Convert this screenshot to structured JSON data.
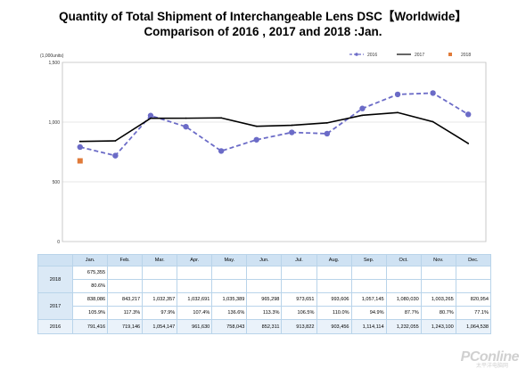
{
  "title": {
    "line1": "Quantity of Total Shipment of Interchangeable Lens DSC【Worldwide】",
    "line2": "Comparison of 2016 , 2017 and 2018 :Jan."
  },
  "chart_data": {
    "type": "line",
    "title": "Quantity of Total Shipment of Interchangeable Lens DSC【Worldwide】 Comparison of 2016 , 2017 and 2018 :Jan.",
    "unit_label": "(1,000units)",
    "categories": [
      "Jan.",
      "Feb.",
      "Mar.",
      "Apr.",
      "May.",
      "Jun.",
      "Jul.",
      "Aug.",
      "Sep.",
      "Oct.",
      "Nov.",
      "Dec."
    ],
    "ylim": [
      0,
      1500
    ],
    "yticks": [
      0,
      500,
      1000,
      1500
    ],
    "ytick_labels": [
      "0",
      "500",
      "1,000",
      "1,500"
    ],
    "grid": true,
    "legend_position": "top-right",
    "series": [
      {
        "name": "2016",
        "color": "#6b6bc7",
        "style": "dashed-circle",
        "values": [
          791.416,
          719.146,
          1054.147,
          961.63,
          758.043,
          852.311,
          913.822,
          903.456,
          1114.114,
          1232.055,
          1243.1,
          1064.538
        ]
      },
      {
        "name": "2017",
        "color": "#000000",
        "style": "solid",
        "values": [
          838.086,
          843.217,
          1032.357,
          1032.691,
          1035.389,
          965.298,
          973.651,
          993.606,
          1057.145,
          1080.03,
          1003.265,
          820.954
        ]
      },
      {
        "name": "2018",
        "color": "#e07b39",
        "style": "square",
        "values": [
          675.355,
          null,
          null,
          null,
          null,
          null,
          null,
          null,
          null,
          null,
          null,
          null
        ]
      }
    ]
  },
  "table": {
    "months": [
      "Jan.",
      "Feb.",
      "Mar.",
      "Apr.",
      "May.",
      "Jun.",
      "Jul.",
      "Aug.",
      "Sep.",
      "Oct.",
      "Nov.",
      "Dec."
    ],
    "rows": {
      "y2018": {
        "label": "2018",
        "values": [
          "675,355",
          "",
          "",
          "",
          "",
          "",
          "",
          "",
          "",
          "",
          "",
          ""
        ],
        "pct": [
          "80.6%",
          "",
          "",
          "",
          "",
          "",
          "",
          "",
          "",
          "",
          "",
          ""
        ]
      },
      "y2017": {
        "label": "2017",
        "values": [
          "838,086",
          "843,217",
          "1,032,357",
          "1,032,691",
          "1,035,389",
          "965,298",
          "973,651",
          "993,606",
          "1,057,145",
          "1,080,030",
          "1,003,265",
          "820,954"
        ],
        "pct": [
          "105.9%",
          "117.3%",
          "97.9%",
          "107.4%",
          "136.6%",
          "113.3%",
          "106.5%",
          "110.0%",
          "94.9%",
          "87.7%",
          "80.7%",
          "77.1%"
        ]
      },
      "y2016": {
        "label": "2016",
        "values": [
          "791,416",
          "719,146",
          "1,054,147",
          "961,630",
          "758,043",
          "852,311",
          "913,822",
          "903,456",
          "1,114,114",
          "1,232,055",
          "1,243,100",
          "1,064,538"
        ]
      }
    }
  },
  "watermark": {
    "brand": "PConline",
    "sub": "太平洋电脑网"
  }
}
